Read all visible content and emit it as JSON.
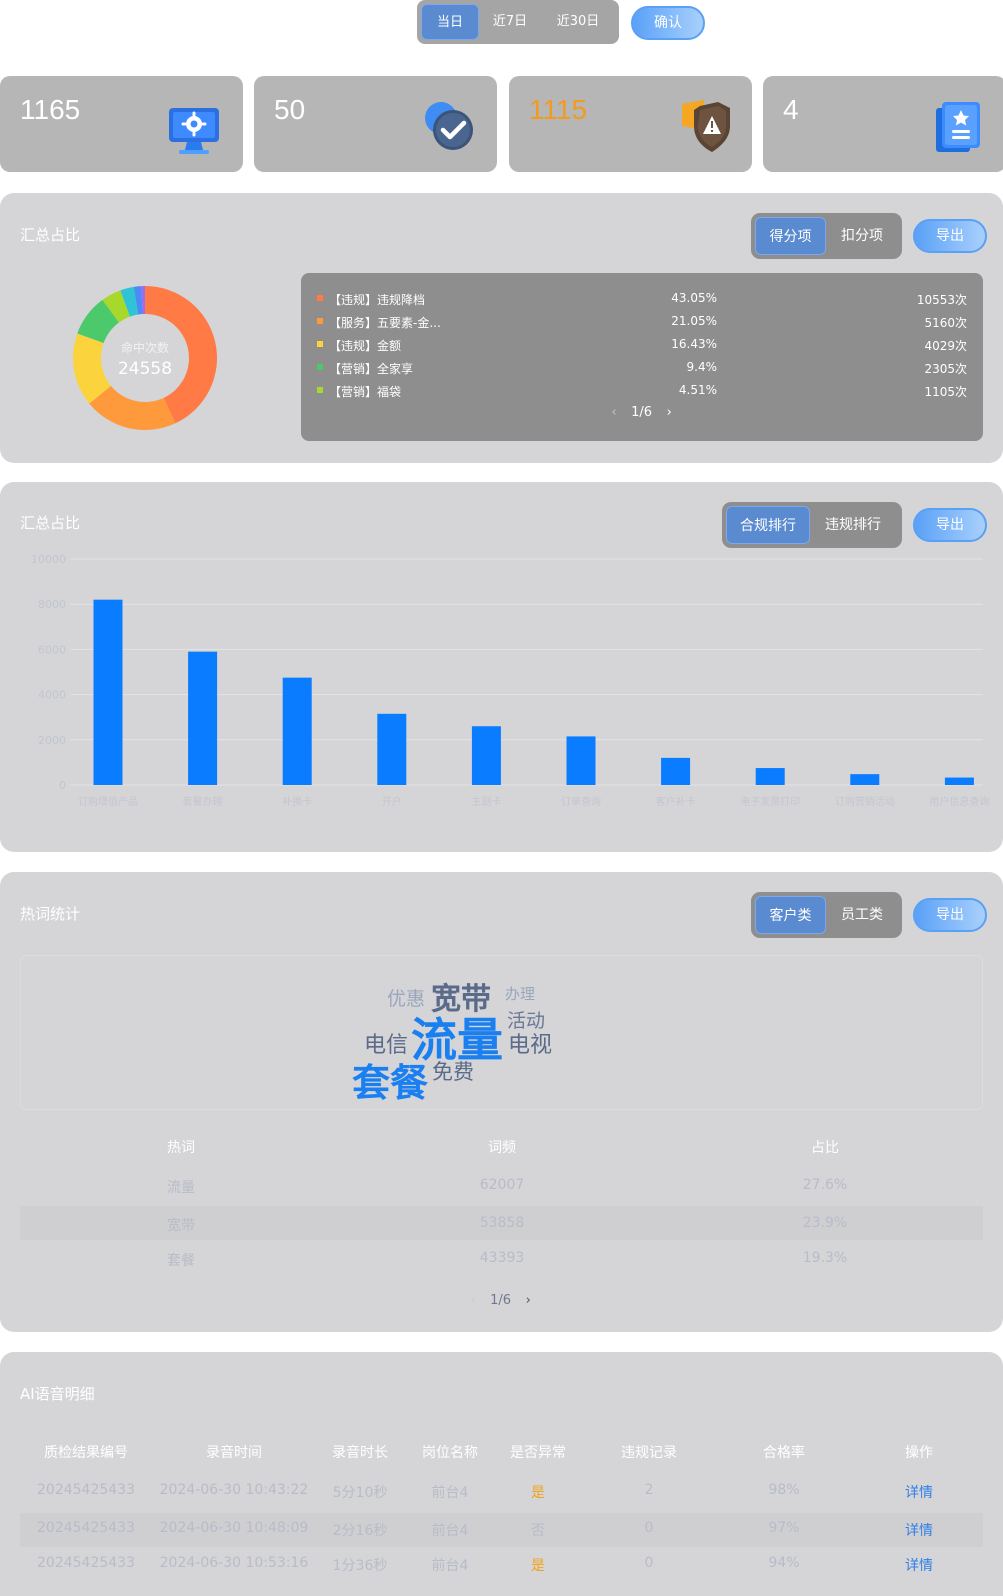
{
  "date_range": {
    "options": [
      "当日",
      "近7日",
      "近30日"
    ],
    "selected": 0,
    "confirm_label": "确认"
  },
  "stats": [
    {
      "value": "1165",
      "unit": "",
      "label": "",
      "icon": "monitor-gear-icon",
      "color": "#ffffff"
    },
    {
      "value": "50",
      "unit": "",
      "label": "",
      "icon": "check-badge-icon",
      "color": "#ffffff"
    },
    {
      "value": "1115",
      "unit": "",
      "label": "",
      "icon": "shield-warning-icon",
      "color": "#f29b1e"
    },
    {
      "value": "4",
      "unit": "",
      "label": "",
      "icon": "book-star-icon",
      "color": "#ffffff"
    }
  ],
  "summary_panel": {
    "title": "汇总占比",
    "tabs": [
      "得分项",
      "扣分项"
    ],
    "export_label": "导出",
    "donut": {
      "label": "命中次数",
      "total": "24558"
    },
    "legend": [
      {
        "name": "【违规】违规降档",
        "pct": "43.05%",
        "count": "10553次",
        "color": "#ff7a45"
      },
      {
        "name": "【服务】五要素-金...",
        "pct": "21.05%",
        "count": "5160次",
        "color": "#ff9a3c"
      },
      {
        "name": "【违规】金额",
        "pct": "16.43%",
        "count": "4029次",
        "color": "#fbd33d"
      },
      {
        "name": "【营销】全家享",
        "pct": "9.4%",
        "count": "2305次",
        "color": "#4cc96b"
      },
      {
        "name": "【营销】福袋",
        "pct": "4.51%",
        "count": "1105次",
        "color": "#a7d82a"
      }
    ],
    "pager": "1/6"
  },
  "ranking_panel": {
    "title": "汇总占比",
    "tabs": [
      "合规排行",
      "违规排行"
    ],
    "export_label": "导出"
  },
  "chart_data": {
    "type": "bar",
    "categories": [
      "订购增值产品",
      "套餐办理",
      "补换卡",
      "开户",
      "主副卡",
      "订单查询",
      "客户补卡",
      "电子发票打印",
      "订购营销活动",
      "用户信息查询"
    ],
    "values": [
      8200,
      5900,
      4750,
      3150,
      2600,
      2150,
      1200,
      750,
      480,
      330
    ],
    "ylim": [
      0,
      10000
    ],
    "yticks": [
      "0",
      "2000",
      "4000",
      "6000",
      "8000",
      "10000"
    ],
    "bar_color": "#0a7cff",
    "grid": true
  },
  "hotword_panel": {
    "title": "热词统计",
    "tabs": [
      "客户类",
      "员工类"
    ],
    "export_label": "导出",
    "cloud": [
      {
        "word": "优惠",
        "size": 19,
        "color": "#9aa6bd"
      },
      {
        "word": "宽带",
        "size": 30,
        "color": "#5a6a8a"
      },
      {
        "word": "办理",
        "size": 15,
        "color": "#9aa6bd"
      },
      {
        "word": "活动",
        "size": 19,
        "color": "#6b7893"
      },
      {
        "word": "电信",
        "size": 22,
        "color": "#5a6a8a"
      },
      {
        "word": "流量",
        "size": 46,
        "color": "#1a7ff0"
      },
      {
        "word": "电视",
        "size": 22,
        "color": "#5a6a8a"
      },
      {
        "word": "套餐",
        "size": 38,
        "color": "#1a7ff0"
      },
      {
        "word": "免费",
        "size": 21,
        "color": "#5a6a8a"
      }
    ],
    "table": {
      "headers": [
        "热词",
        "词频",
        "占比"
      ],
      "rows": [
        [
          "流量",
          "62007",
          "27.6%"
        ],
        [
          "宽带",
          "53858",
          "23.9%"
        ],
        [
          "套餐",
          "43393",
          "19.3%"
        ]
      ]
    },
    "pager": "1/6"
  },
  "detail_panel": {
    "title": "AI语音明细",
    "headers": [
      "质检结果编号",
      "录音时间",
      "录音时长",
      "岗位名称",
      "是否异常",
      "违规记录",
      "合格率",
      "操作"
    ],
    "rows": [
      [
        "20245425433",
        "2024-06-30 10:43:22",
        "5分10秒",
        "前台4",
        "是",
        "2",
        "98%",
        "详情"
      ],
      [
        "20245425433",
        "2024-06-30 10:48:09",
        "2分16秒",
        "前台4",
        "否",
        "0",
        "97%",
        "详情"
      ],
      [
        "20245425433",
        "2024-06-30 10:53:16",
        "1分36秒",
        "前台4",
        "是",
        "0",
        "94%",
        "详情"
      ]
    ]
  }
}
